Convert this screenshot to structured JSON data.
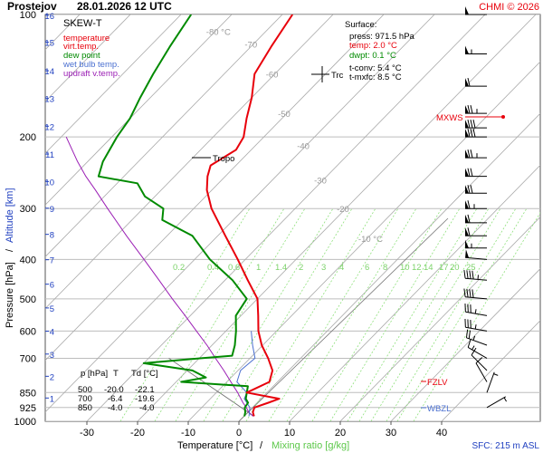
{
  "header": {
    "station": "Prostejov",
    "datetime": "28.01.2026 12 UTC",
    "credit": "CHMI © 2026"
  },
  "legend": {
    "title": "SKEW-T",
    "items": [
      {
        "label": "temperature",
        "color": "#e8000b"
      },
      {
        "label": "virt.temp.",
        "color": "#e8000b"
      },
      {
        "label": "dew point",
        "color": "#008a00"
      },
      {
        "label": "wet bulb temp.",
        "color": "#4a6fd0"
      },
      {
        "label": "updraft v.temp.",
        "color": "#9b1fb5"
      }
    ]
  },
  "surface": {
    "title": "Surface:",
    "press": "press: 971.5 hPa",
    "temp": "temp: 2.0 °C",
    "dwpt": "dwpt: 0.1 °C",
    "tconv": "t-conv: 5.4 °C",
    "tmxfc": "t-mxfc: 8.5 °C"
  },
  "labels": {
    "tropo": "Tropo",
    "trc": "Trc",
    "mxws": "MXWS",
    "fzlv": "FZLV",
    "wbzl": "WBZL",
    "sfc": "SFC: 215 m ASL",
    "ylabel_pressure": "Pressure [hPa]",
    "ylabel_sep": "/",
    "ylabel_altitude": "Altitude [km]",
    "xlabel_temp": "Temperature [°C]",
    "xlabel_sep": "/",
    "xlabel_mix": "Mixing ratio [g/kg]"
  },
  "table": {
    "header": [
      "p [hPa]",
      "T",
      "Td [°C]"
    ],
    "rows": [
      [
        "500",
        "-20.0",
        "-22.1"
      ],
      [
        "700",
        "-6.4",
        "-19.6"
      ],
      [
        "850",
        "-4.0",
        "-4.0"
      ]
    ]
  },
  "colors": {
    "temperature": "#e8000b",
    "dewpoint": "#008a00",
    "wetbulb": "#4a6fd0",
    "updraft": "#9b1fb5",
    "isotherm": "#a9a9a9",
    "mixing": "#8fe07c",
    "mixing_label": "#7dd36b",
    "altitude": "#2040c0"
  },
  "chart_data": {
    "type": "skew-t",
    "x_ticks": [
      -30,
      -20,
      -10,
      0,
      10,
      20,
      30,
      40
    ],
    "pressure_ticks": [
      100,
      200,
      300,
      400,
      500,
      600,
      700,
      850,
      925,
      1000
    ],
    "altitude_ticks_km": [
      1,
      2,
      3,
      4,
      5,
      6,
      7,
      8,
      9,
      10,
      11,
      12,
      13,
      14,
      15,
      16
    ],
    "isotherm_labels": [
      -80,
      -70,
      -60,
      -50,
      -40,
      -30,
      -20,
      -10
    ],
    "isotherm_label_texts": [
      "-80 °C",
      "-70",
      "-60",
      "-50",
      "-40",
      "-30",
      "-20",
      "-10 °C"
    ],
    "mixing_ratios": [
      0.2,
      0.4,
      0.6,
      1,
      1.4,
      2,
      3,
      4,
      6,
      8,
      10,
      12,
      14,
      17,
      20,
      25
    ],
    "mixing_ratio_labels": [
      "0.2",
      "0.4",
      "0.6",
      "1",
      "1.4",
      "2",
      "3",
      "4",
      "6",
      "8",
      "10",
      "12",
      "14",
      "17",
      "20",
      "25"
    ],
    "temperature": [
      [
        971.5,
        2.0
      ],
      [
        950,
        1.0
      ],
      [
        925,
        0.4
      ],
      [
        900,
        2.2
      ],
      [
        880,
        3.6
      ],
      [
        850,
        -4.0
      ],
      [
        800,
        -1.6
      ],
      [
        750,
        -3.2
      ],
      [
        700,
        -6.4
      ],
      [
        650,
        -10.2
      ],
      [
        600,
        -13.6
      ],
      [
        550,
        -16.6
      ],
      [
        500,
        -20.0
      ],
      [
        450,
        -25.5
      ],
      [
        400,
        -31.5
      ],
      [
        350,
        -38.5
      ],
      [
        300,
        -46.5
      ],
      [
        270,
        -51.0
      ],
      [
        250,
        -53.5
      ],
      [
        235,
        -55.0
      ],
      [
        215,
        -53.0
      ],
      [
        200,
        -54.0
      ],
      [
        180,
        -57.0
      ],
      [
        160,
        -60.0
      ],
      [
        140,
        -64.0
      ],
      [
        120,
        -66.0
      ],
      [
        100,
        -68.0
      ]
    ],
    "dewpoint": [
      [
        971.5,
        0.1
      ],
      [
        950,
        -0.5
      ],
      [
        925,
        -1.5
      ],
      [
        900,
        -1.8
      ],
      [
        880,
        -3.0
      ],
      [
        850,
        -4.0
      ],
      [
        820,
        -5.0
      ],
      [
        800,
        -19.0
      ],
      [
        780,
        -15.0
      ],
      [
        750,
        -19.0
      ],
      [
        720,
        -30.0
      ],
      [
        700,
        -19.6
      ],
      [
        690,
        -14.0
      ],
      [
        650,
        -15.5
      ],
      [
        600,
        -18.0
      ],
      [
        550,
        -21.0
      ],
      [
        500,
        -22.1
      ],
      [
        450,
        -28.5
      ],
      [
        400,
        -37.0
      ],
      [
        350,
        -45.0
      ],
      [
        320,
        -54.0
      ],
      [
        300,
        -56.0
      ],
      [
        280,
        -62.0
      ],
      [
        260,
        -66.0
      ],
      [
        250,
        -75.0
      ],
      [
        230,
        -77.0
      ],
      [
        200,
        -79.0
      ],
      [
        180,
        -80.0
      ],
      [
        160,
        -82.0
      ],
      [
        140,
        -84.0
      ],
      [
        120,
        -86.0
      ],
      [
        100,
        -88.0
      ]
    ],
    "wetbulb": [
      [
        971.5,
        1.0
      ],
      [
        925,
        -0.5
      ],
      [
        880,
        -3.3
      ],
      [
        850,
        -4.0
      ],
      [
        800,
        -8.0
      ],
      [
        750,
        -9.5
      ],
      [
        700,
        -9.0
      ],
      [
        650,
        -12.0
      ],
      [
        600,
        -15.0
      ]
    ],
    "updraft_vtemp": [
      [
        971.5,
        1.8
      ],
      [
        950,
        0.2
      ],
      [
        925,
        -1.2
      ],
      [
        900,
        -2.8
      ],
      [
        850,
        -5.8
      ],
      [
        800,
        -9.2
      ],
      [
        750,
        -12.8
      ],
      [
        700,
        -16.8
      ],
      [
        650,
        -21.0
      ],
      [
        600,
        -25.8
      ],
      [
        550,
        -31.0
      ],
      [
        500,
        -36.8
      ],
      [
        450,
        -43.0
      ],
      [
        400,
        -50.0
      ],
      [
        350,
        -58.0
      ],
      [
        300,
        -67.0
      ],
      [
        270,
        -73.0
      ],
      [
        250,
        -77.5
      ],
      [
        230,
        -82.0
      ],
      [
        200,
        -89.0
      ]
    ],
    "dry_adiabat_sfc": [
      [
        971.5,
        2.0
      ],
      [
        700,
        -26.0
      ]
    ],
    "wind_barbs": [
      {
        "p": 100,
        "dir": 270,
        "kt": 50
      },
      {
        "p": 125,
        "dir": 270,
        "kt": 55
      },
      {
        "p": 150,
        "dir": 270,
        "kt": 60
      },
      {
        "p": 175,
        "dir": 270,
        "kt": 75
      },
      {
        "p": 190,
        "dir": 270,
        "kt": 80
      },
      {
        "p": 200,
        "dir": 270,
        "kt": 80
      },
      {
        "p": 225,
        "dir": 270,
        "kt": 75
      },
      {
        "p": 250,
        "dir": 270,
        "kt": 70
      },
      {
        "p": 275,
        "dir": 270,
        "kt": 70
      },
      {
        "p": 300,
        "dir": 270,
        "kt": 65
      },
      {
        "p": 325,
        "dir": 270,
        "kt": 60
      },
      {
        "p": 350,
        "dir": 270,
        "kt": 60
      },
      {
        "p": 375,
        "dir": 270,
        "kt": 55
      },
      {
        "p": 400,
        "dir": 275,
        "kt": 50
      },
      {
        "p": 450,
        "dir": 275,
        "kt": 45
      },
      {
        "p": 500,
        "dir": 275,
        "kt": 40
      },
      {
        "p": 550,
        "dir": 280,
        "kt": 35
      },
      {
        "p": 600,
        "dir": 280,
        "kt": 35
      },
      {
        "p": 650,
        "dir": 290,
        "kt": 25
      },
      {
        "p": 700,
        "dir": 300,
        "kt": 15
      },
      {
        "p": 750,
        "dir": 315,
        "kt": 10
      },
      {
        "p": 800,
        "dir": 330,
        "kt": 10
      },
      {
        "p": 850,
        "dir": 20,
        "kt": 5
      },
      {
        "p": 925,
        "dir": 60,
        "kt": 5
      }
    ]
  }
}
